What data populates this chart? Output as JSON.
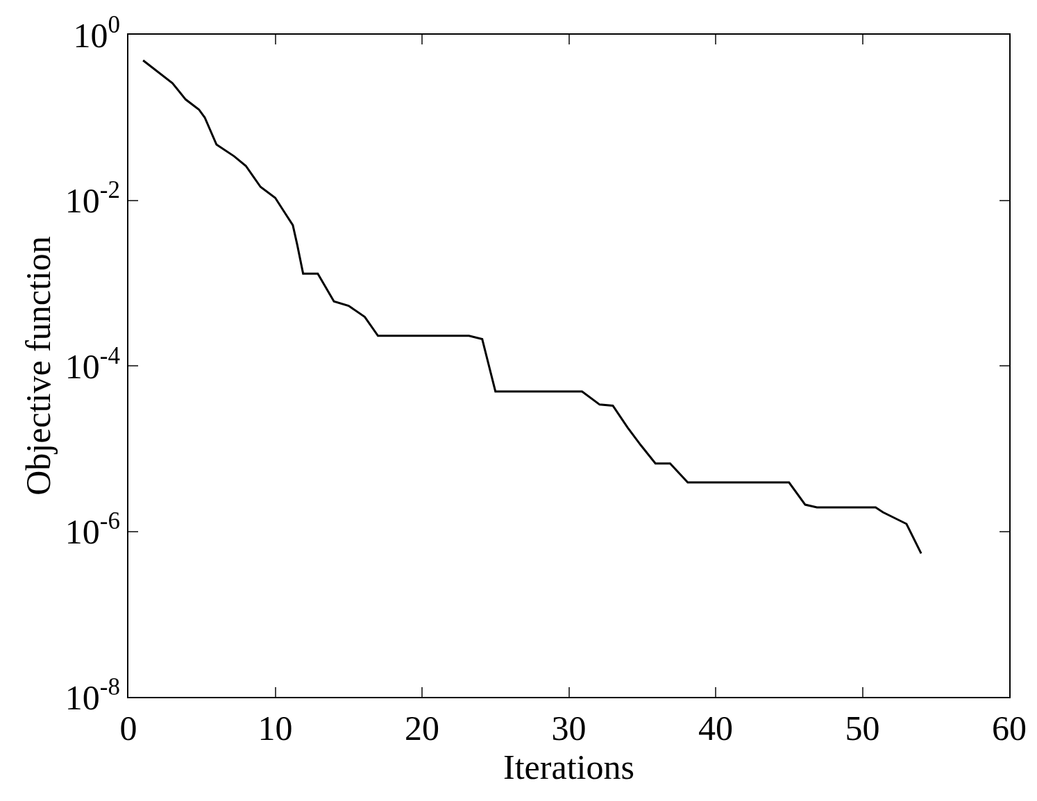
{
  "chart_data": {
    "type": "line",
    "xlabel": "Iterations",
    "ylabel": "Objective function",
    "log": "y",
    "grid": false,
    "marker": "none",
    "line_style": "solid",
    "xlim": [
      0,
      60
    ],
    "xticks": [
      0,
      10,
      20,
      30,
      40,
      50,
      60
    ],
    "ylim": [
      1e-08,
      1
    ],
    "yticks": [
      {
        "value": 1e-08,
        "label": "10$^{-8}$"
      },
      {
        "value": 1e-06,
        "label": "10$^{-6}$"
      },
      {
        "value": 0.0001,
        "label": "10$^{-4}$"
      },
      {
        "value": 0.01,
        "label": "10$^{-2}$"
      },
      {
        "value": 1,
        "label": "10$^{0}$"
      }
    ],
    "series": [
      {
        "color": "#000000",
        "x": [
          1,
          3,
          3.9,
          4.8,
          5.2,
          6,
          7.2,
          8,
          9,
          10,
          10.6,
          11.2,
          11.5,
          11.9,
          12.9,
          14,
          15,
          16.1,
          17,
          23.2,
          24.1,
          25,
          30.9,
          32.1,
          33,
          34,
          34.9,
          35.9,
          36.9,
          38.1,
          45,
          46.1,
          46.9,
          50.9,
          51.4,
          53,
          54
        ],
        "values": [
          0.49,
          0.26,
          0.165,
          0.125,
          0.1,
          0.047,
          0.034,
          0.026,
          0.0145,
          0.0107,
          0.0073,
          0.005,
          0.0029,
          0.0013,
          0.0013,
          0.0006,
          0.00053,
          0.00039,
          0.00023,
          0.00023,
          0.00021,
          4.9e-05,
          4.9e-05,
          3.4e-05,
          3.3e-05,
          1.8e-05,
          1.1e-05,
          6.6e-06,
          6.6e-06,
          3.9e-06,
          3.9e-06,
          2.1e-06,
          1.95e-06,
          1.95e-06,
          1.7e-06,
          1.23e-06,
          5.4e-07
        ]
      }
    ]
  }
}
